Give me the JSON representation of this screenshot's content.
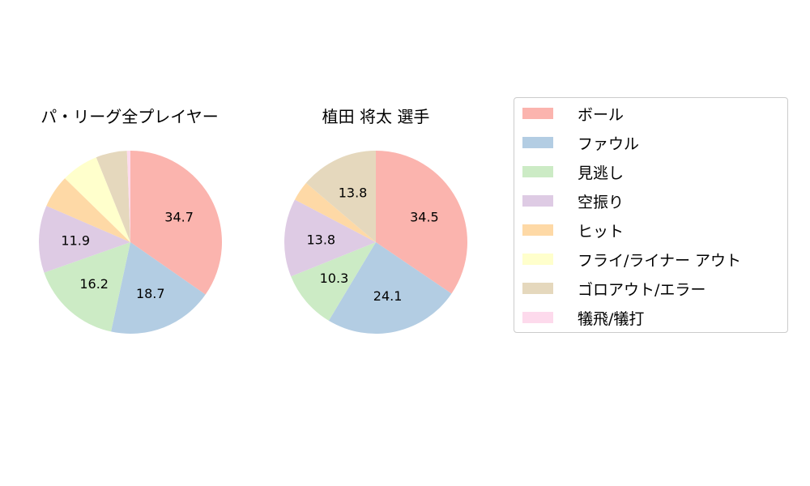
{
  "chart_data": [
    {
      "type": "pie",
      "title": "パ・リーグ全プレイヤー",
      "categories": [
        "ボール",
        "ファウル",
        "見逃し",
        "空振り",
        "ヒット",
        "フライ/ライナー アウト",
        "ゴロアウト/エラー",
        "犠飛/犠打"
      ],
      "values": [
        34.7,
        18.7,
        16.2,
        11.9,
        5.8,
        6.6,
        5.5,
        0.6
      ],
      "labels": [
        "34.7",
        "18.7",
        "16.2",
        "11.9",
        "",
        "",
        "",
        ""
      ]
    },
    {
      "type": "pie",
      "title": "植田 将太  選手",
      "categories": [
        "ボール",
        "ファウル",
        "見逃し",
        "空振り",
        "ヒット",
        "フライ/ライナー アウト",
        "ゴロアウト/エラー",
        "犠飛/犠打"
      ],
      "values": [
        34.5,
        24.1,
        10.3,
        13.8,
        3.5,
        0,
        13.8,
        0
      ],
      "labels": [
        "34.5",
        "24.1",
        "10.3",
        "13.8",
        "",
        "",
        "13.8",
        ""
      ]
    }
  ],
  "legend": {
    "placement": "right",
    "items": [
      "ボール",
      "ファウル",
      "見逃し",
      "空振り",
      "ヒット",
      "フライ/ライナー アウト",
      "ゴロアウト/エラー",
      "犠飛/犠打"
    ]
  },
  "colors": [
    "#fbb4ae",
    "#b3cde3",
    "#ccebc5",
    "#decbe4",
    "#fed9a6",
    "#ffffcc",
    "#e5d8bd",
    "#fddaec"
  ]
}
